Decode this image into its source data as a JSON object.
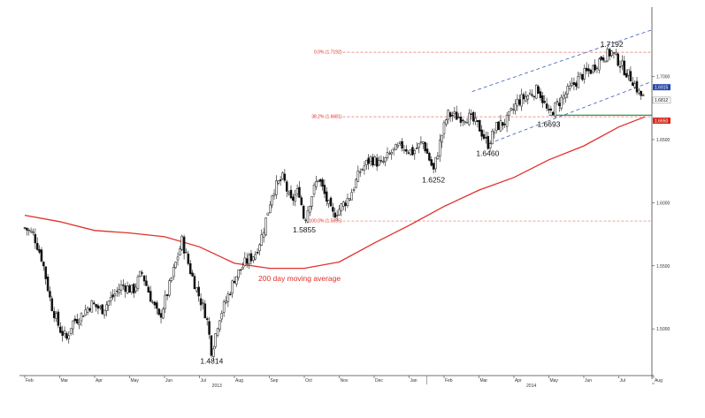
{
  "chart_data": {
    "type": "candlestick",
    "title": "",
    "xlabel": "",
    "ylabel": "",
    "ylim": [
      1.463,
      1.748
    ],
    "y_ticks": [
      "1.5000",
      "1.5500",
      "1.6000",
      "1.6500",
      "1.7000"
    ],
    "x_ticks": [
      "Feb",
      "Mar",
      "Apr",
      "May",
      "Jun",
      "Jul",
      "Aug",
      "Sep",
      "Oct",
      "Nov",
      "Dec",
      "Jan",
      "Feb",
      "Mar",
      "Apr",
      "May",
      "Jun",
      "Jul",
      "Aug"
    ],
    "x_year_labels": [
      "2013",
      "2014"
    ],
    "price_path": [
      {
        "t": 0,
        "v": 1.58
      },
      {
        "t": 0.25,
        "v": 1.575
      },
      {
        "t": 0.5,
        "v": 1.555
      },
      {
        "t": 0.75,
        "v": 1.52
      },
      {
        "t": 1.0,
        "v": 1.5
      },
      {
        "t": 1.2,
        "v": 1.492
      },
      {
        "t": 1.35,
        "v": 1.505
      },
      {
        "t": 1.6,
        "v": 1.51
      },
      {
        "t": 1.9,
        "v": 1.52
      },
      {
        "t": 2.2,
        "v": 1.515
      },
      {
        "t": 2.5,
        "v": 1.525
      },
      {
        "t": 2.8,
        "v": 1.535
      },
      {
        "t": 3.1,
        "v": 1.53
      },
      {
        "t": 3.35,
        "v": 1.545
      },
      {
        "t": 3.6,
        "v": 1.525
      },
      {
        "t": 3.85,
        "v": 1.508
      },
      {
        "t": 4.1,
        "v": 1.53
      },
      {
        "t": 4.3,
        "v": 1.55
      },
      {
        "t": 4.5,
        "v": 1.57
      },
      {
        "t": 4.75,
        "v": 1.545
      },
      {
        "t": 5.0,
        "v": 1.525
      },
      {
        "t": 5.2,
        "v": 1.51
      },
      {
        "t": 5.35,
        "v": 1.4814
      },
      {
        "t": 5.55,
        "v": 1.508
      },
      {
        "t": 5.8,
        "v": 1.525
      },
      {
        "t": 6.0,
        "v": 1.54
      },
      {
        "t": 6.3,
        "v": 1.552
      },
      {
        "t": 6.6,
        "v": 1.56
      },
      {
        "t": 6.8,
        "v": 1.575
      },
      {
        "t": 7.1,
        "v": 1.61
      },
      {
        "t": 7.4,
        "v": 1.62
      },
      {
        "t": 7.6,
        "v": 1.6
      },
      {
        "t": 7.85,
        "v": 1.61
      },
      {
        "t": 8.0,
        "v": 1.5855
      },
      {
        "t": 8.2,
        "v": 1.605
      },
      {
        "t": 8.4,
        "v": 1.62
      },
      {
        "t": 8.6,
        "v": 1.605
      },
      {
        "t": 8.8,
        "v": 1.59
      },
      {
        "t": 9.0,
        "v": 1.595
      },
      {
        "t": 9.3,
        "v": 1.605
      },
      {
        "t": 9.6,
        "v": 1.625
      },
      {
        "t": 9.9,
        "v": 1.635
      },
      {
        "t": 10.2,
        "v": 1.63
      },
      {
        "t": 10.5,
        "v": 1.64
      },
      {
        "t": 10.8,
        "v": 1.645
      },
      {
        "t": 11.1,
        "v": 1.64
      },
      {
        "t": 11.4,
        "v": 1.648
      },
      {
        "t": 11.7,
        "v": 1.6252
      },
      {
        "t": 11.9,
        "v": 1.65
      },
      {
        "t": 12.1,
        "v": 1.67
      },
      {
        "t": 12.4,
        "v": 1.668
      },
      {
        "t": 12.7,
        "v": 1.668
      },
      {
        "t": 13.0,
        "v": 1.66
      },
      {
        "t": 13.25,
        "v": 1.646
      },
      {
        "t": 13.5,
        "v": 1.66
      },
      {
        "t": 13.8,
        "v": 1.665
      },
      {
        "t": 14.1,
        "v": 1.68
      },
      {
        "t": 14.4,
        "v": 1.685
      },
      {
        "t": 14.7,
        "v": 1.69
      },
      {
        "t": 15.0,
        "v": 1.6693
      },
      {
        "t": 15.3,
        "v": 1.68
      },
      {
        "t": 15.6,
        "v": 1.69
      },
      {
        "t": 15.9,
        "v": 1.7
      },
      {
        "t": 16.2,
        "v": 1.705
      },
      {
        "t": 16.5,
        "v": 1.715
      },
      {
        "t": 16.8,
        "v": 1.7192
      },
      {
        "t": 17.0,
        "v": 1.712
      },
      {
        "t": 17.2,
        "v": 1.704
      },
      {
        "t": 17.4,
        "v": 1.697
      },
      {
        "t": 17.6,
        "v": 1.686
      },
      {
        "t": 17.75,
        "v": 1.682
      }
    ],
    "moving_average": {
      "label": "200 day moving average",
      "points": [
        {
          "t": 0,
          "v": 1.59
        },
        {
          "t": 1,
          "v": 1.585
        },
        {
          "t": 2,
          "v": 1.578
        },
        {
          "t": 3,
          "v": 1.576
        },
        {
          "t": 4,
          "v": 1.573
        },
        {
          "t": 5,
          "v": 1.565
        },
        {
          "t": 6,
          "v": 1.552
        },
        {
          "t": 7,
          "v": 1.548
        },
        {
          "t": 8,
          "v": 1.548
        },
        {
          "t": 9,
          "v": 1.553
        },
        {
          "t": 10,
          "v": 1.568
        },
        {
          "t": 11,
          "v": 1.582
        },
        {
          "t": 12,
          "v": 1.597
        },
        {
          "t": 13,
          "v": 1.61
        },
        {
          "t": 14,
          "v": 1.62
        },
        {
          "t": 15,
          "v": 1.634
        },
        {
          "t": 16,
          "v": 1.645
        },
        {
          "t": 17,
          "v": 1.66
        },
        {
          "t": 17.75,
          "v": 1.668
        }
      ]
    },
    "fib_levels": [
      {
        "label": "0.0% (1.7192)",
        "value": 1.7192
      },
      {
        "label": "38.2% (1.6681)",
        "value": 1.6681
      },
      {
        "label": "100.0% (1.5855)",
        "value": 1.5855
      }
    ],
    "channel_upper": [
      {
        "t": 12.8,
        "v": 1.688
      },
      {
        "t": 17.95,
        "v": 1.737
      }
    ],
    "channel_lower": [
      {
        "t": 13.3,
        "v": 1.647
      },
      {
        "t": 17.95,
        "v": 1.696
      }
    ],
    "green_line": {
      "value": 1.6693,
      "t_start": 15.0,
      "t_end": 17.95
    },
    "annotations": [
      {
        "text": "1.4814",
        "t": 5.35,
        "v": 1.4814,
        "pos": "below"
      },
      {
        "text": "1.5855",
        "t": 8.0,
        "v": 1.5855,
        "pos": "below"
      },
      {
        "text": "1.6252",
        "t": 11.7,
        "v": 1.6252,
        "pos": "below"
      },
      {
        "text": "1.6460",
        "t": 13.25,
        "v": 1.646,
        "pos": "below"
      },
      {
        "text": "1.6693",
        "t": 15.0,
        "v": 1.6693,
        "pos": "below"
      },
      {
        "text": "1.7192",
        "t": 16.8,
        "v": 1.7192,
        "pos": "above"
      }
    ],
    "right_tags": [
      {
        "text": "1.6915",
        "value": 1.6915,
        "color": "#2948a8",
        "kind": "blue"
      },
      {
        "text": "1.6812",
        "value": 1.6812,
        "color": "#ffffff",
        "kind": "plain"
      },
      {
        "text": "1.6650",
        "value": 1.665,
        "color": "#d9281f",
        "kind": "red"
      }
    ]
  }
}
